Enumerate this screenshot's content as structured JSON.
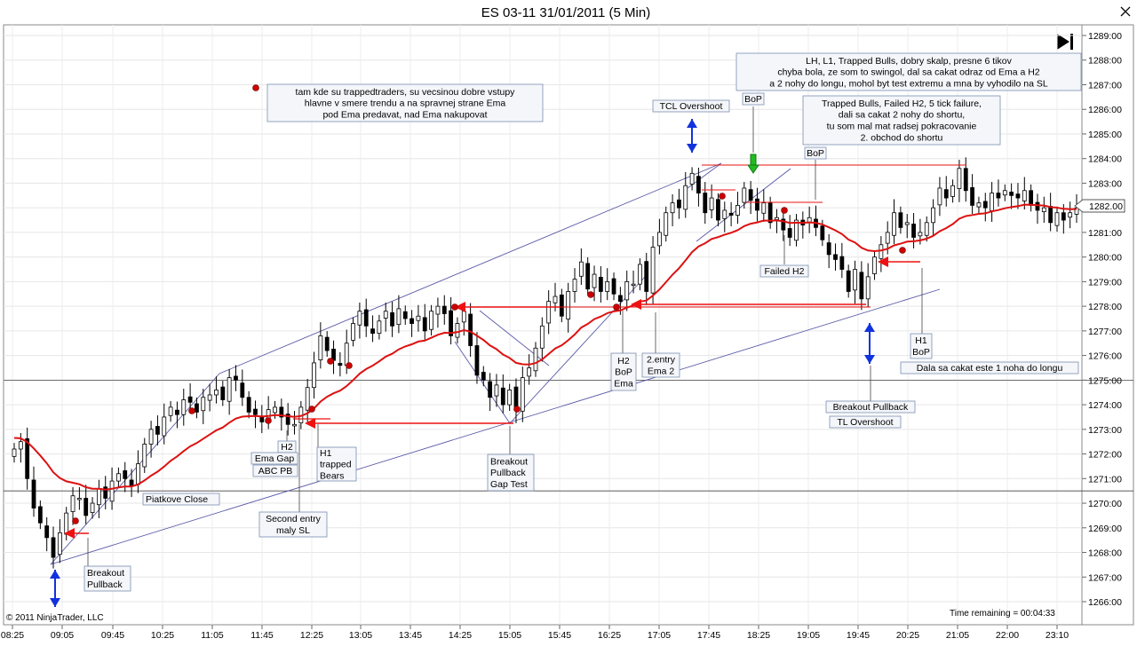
{
  "title": "ES 03-11  31/01/2011 (5 Min)",
  "copyright": "© 2011 NinjaTrader, LLC",
  "time_remaining": "Time remaining = 00:04:33",
  "last_price_label": "1282.00",
  "colors": {
    "ema": "#dd1111",
    "up_candle": "#ffffff",
    "down_candle": "#000000",
    "trendline": "#5a5aa8",
    "annotation_border": "#7a8fb0",
    "annotation_fill": "#f4f6fa",
    "arrow_red": "#ee1111",
    "arrow_blue": "#1133dd",
    "arrow_green": "#22bb22",
    "dot": "#cc0000"
  },
  "chart_data": {
    "type": "candlestick",
    "x_ticks": [
      "08:25",
      "09:05",
      "09:45",
      "10:25",
      "11:05",
      "11:45",
      "12:25",
      "13:05",
      "13:45",
      "14:25",
      "15:05",
      "15:45",
      "16:25",
      "17:05",
      "17:45",
      "18:25",
      "19:05",
      "19:45",
      "20:25",
      "21:05",
      "22:00",
      "23:10"
    ],
    "y_ticks": [
      "1289:00",
      "1288:00",
      "1287:00",
      "1286:00",
      "1285:00",
      "1284:00",
      "1283:00",
      "1282:00",
      "1281:00",
      "1280:00",
      "1279:00",
      "1278:00",
      "1277:00",
      "1276:00",
      "1275:00",
      "1274:00",
      "1273:00",
      "1272:00",
      "1271:00",
      "1270:00",
      "1269:00",
      "1268:00",
      "1267:00",
      "1266:00"
    ],
    "ylim": [
      1265.6,
      1289.5
    ],
    "horizontal_lines": [
      1275.0,
      1270.5
    ],
    "closes": [
      1272.2,
      1272.5,
      1271.0,
      1269.8,
      1269.2,
      1268.6,
      1267.8,
      1268.8,
      1269.6,
      1270.3,
      1270.2,
      1269.5,
      1270.0,
      1270.6,
      1270.2,
      1270.9,
      1271.2,
      1271.0,
      1270.7,
      1271.6,
      1272.4,
      1273.0,
      1272.8,
      1273.5,
      1273.9,
      1273.6,
      1274.2,
      1274.1,
      1273.7,
      1274.3,
      1274.4,
      1274.6,
      1274.2,
      1275.1,
      1275.0,
      1274.3,
      1273.7,
      1273.6,
      1273.3,
      1273.8,
      1273.9,
      1273.5,
      1273.2,
      1273.2,
      1273.9,
      1274.7,
      1275.7,
      1276.8,
      1276.2,
      1275.8,
      1275.6,
      1276.5,
      1277.3,
      1277.8,
      1277.2,
      1276.9,
      1277.4,
      1277.8,
      1277.2,
      1277.9,
      1277.5,
      1277.3,
      1277.6,
      1277.0,
      1277.8,
      1278.0,
      1277.7,
      1276.8,
      1277.3,
      1277.8,
      1276.4,
      1275.2,
      1275.0,
      1274.3,
      1274.8,
      1274.0,
      1274.6,
      1273.8,
      1275.1,
      1275.5,
      1276.3,
      1277.2,
      1278.2,
      1278.4,
      1277.6,
      1278.6,
      1279.1,
      1279.8,
      1278.7,
      1279.3,
      1278.6,
      1279.0,
      1278.5,
      1278.2,
      1279.0,
      1278.9,
      1279.7,
      1278.6,
      1280.4,
      1281.0,
      1281.8,
      1282.2,
      1282.0,
      1282.9,
      1283.4,
      1282.6,
      1281.8,
      1282.4,
      1281.5,
      1281.9,
      1281.7,
      1282.1,
      1282.8,
      1282.3,
      1281.9,
      1282.2,
      1281.4,
      1281.6,
      1281.1,
      1280.8,
      1281.5,
      1281.3,
      1281.6,
      1281.2,
      1280.7,
      1280.1,
      1279.9,
      1279.5,
      1278.6,
      1279.5,
      1278.3,
      1279.2,
      1280.0,
      1280.5,
      1281.0,
      1281.8,
      1281.2,
      1281.4,
      1280.8,
      1281.0,
      1281.4,
      1282.0,
      1282.8,
      1282.4,
      1282.9,
      1283.6,
      1282.7,
      1282.1,
      1282.2,
      1282.0,
      1282.6,
      1282.4,
      1282.7,
      1282.5,
      1282.4,
      1282.7,
      1282.1,
      1281.9,
      1282.0,
      1281.4,
      1281.8,
      1281.5,
      1281.8,
      1282.0
    ]
  },
  "annotations": {
    "a_breakout_pullback_1": "Breakout\nPullback",
    "a_piatkove": "Piatkove Close",
    "a_h2_ema_gap": "H2",
    "a_ema_gap": "Ema Gap",
    "a_abc_pb": "ABC PB",
    "a_second_entry": "Second entry\nmaly SL",
    "a_h1_trapped": "H1\ntrapped\nBears",
    "a_tam_kde": "tam kde su trappedtraders, su vecsinou dobre vstupy\nhlavne v smere trendu a na spravnej strane Ema\npod Ema predavat, nad Ema nakupovat",
    "a_breakout_gap": "Breakout\nPullback\nGap Test",
    "a_h2_bop_ema": "H2\nBoP\nEma",
    "a_2entry": "2.entry\nEma 2",
    "a_tcl": "TCL Overshoot",
    "a_bop_top": "BoP",
    "a_lh_l1": "LH, L1, Trapped Bulls, dobry skalp, presne 6 tikov\nchyba bola, ze som to swingol, dal sa cakat odraz od Ema a H2\na 2 nohy do longu, mohol byt test extremu a mna by vyhodilo na SL",
    "a_trapped_bulls": "Trapped Bulls, Failed H2, 5 tick failure,\ndali sa cakat 2 nohy do shortu,\ntu som mal mat radsej pokracovanie\n2. obchod do shortu",
    "a_bop_mid": "BoP",
    "a_failed_h2": "Failed H2",
    "a_h1_bop": "H1\nBoP",
    "a_dala_sa": "Dala sa cakat este 1 noha do longu",
    "a_breakout_pullback_2": "Breakout Pullback",
    "a_tl_overshoot": "TL Overshoot"
  }
}
